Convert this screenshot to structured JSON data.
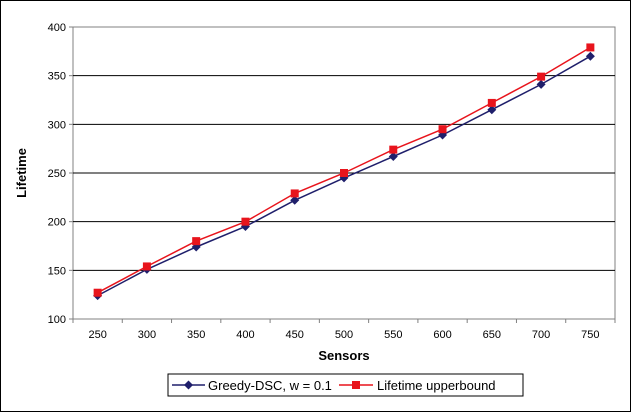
{
  "chart_data": {
    "type": "line",
    "xlabel": "Sensors",
    "ylabel": "Lifetime",
    "x": [
      250,
      300,
      350,
      400,
      450,
      500,
      550,
      600,
      650,
      700,
      750
    ],
    "xlim": [
      250,
      750
    ],
    "ylim": [
      100,
      400
    ],
    "yticks": [
      100,
      150,
      200,
      250,
      300,
      350,
      400
    ],
    "grid": true,
    "legend_position": "bottom",
    "series": [
      {
        "name": "Greedy-DSC, w = 0.1",
        "color": "#1f1f6b",
        "marker": "diamond",
        "values": [
          124,
          151,
          174,
          195,
          222,
          245,
          267,
          289,
          315,
          341,
          370
        ]
      },
      {
        "name": "Lifetime upperbound",
        "color": "#e8141c",
        "marker": "square",
        "values": [
          127,
          154,
          180,
          200,
          229,
          250,
          274,
          295,
          322,
          349,
          379
        ]
      }
    ]
  }
}
